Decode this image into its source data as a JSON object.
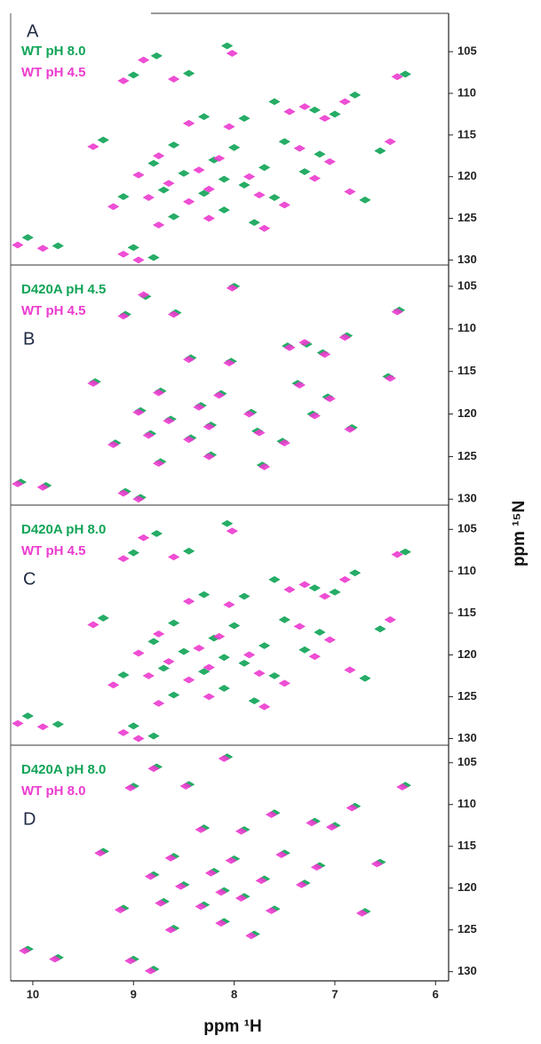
{
  "chart_data": [
    {
      "type": "scatter",
      "panel_label": "A",
      "xlim": [
        10.22,
        5.87
      ],
      "ylim": [
        100.4,
        130.6
      ],
      "yticks": [
        105,
        110,
        115,
        120,
        125,
        130
      ],
      "series": [
        {
          "name": "WT pH 8.0",
          "color": "#10a456",
          "x": [
            8.07,
            8.77,
            8.45,
            9.0,
            6.3,
            6.8,
            7.6,
            7.2,
            7.0,
            7.9,
            8.3,
            9.3,
            8.6,
            8.0,
            7.5,
            8.8,
            8.2,
            7.7,
            7.3,
            8.5,
            8.1,
            7.9,
            8.7,
            8.3,
            7.6,
            9.1,
            6.7,
            8.1,
            7.8,
            8.6,
            10.05,
            9.75,
            9.0,
            8.8,
            7.15,
            6.55
          ],
          "values": [
            104.3,
            105.5,
            107.6,
            107.8,
            107.7,
            110.2,
            111.0,
            112.0,
            112.5,
            113.0,
            112.8,
            115.6,
            116.2,
            116.5,
            115.8,
            118.4,
            118.0,
            118.9,
            119.4,
            119.6,
            120.3,
            121.0,
            121.6,
            122.0,
            122.5,
            122.4,
            122.8,
            124.0,
            125.5,
            124.8,
            127.3,
            128.3,
            128.5,
            129.7,
            117.3,
            116.9
          ]
        },
        {
          "name": "WT pH 4.5",
          "color": "#ec3ccf",
          "x": [
            8.02,
            8.9,
            8.6,
            9.1,
            6.38,
            6.9,
            7.45,
            7.1,
            7.3,
            8.05,
            8.45,
            9.4,
            8.75,
            8.15,
            7.35,
            8.95,
            8.35,
            7.85,
            7.2,
            8.65,
            8.25,
            7.75,
            8.85,
            8.45,
            7.5,
            9.2,
            6.85,
            8.25,
            7.7,
            8.75,
            10.15,
            9.9,
            9.1,
            8.95,
            7.05,
            6.45
          ],
          "values": [
            105.2,
            106.0,
            108.3,
            108.5,
            108.0,
            111.0,
            112.2,
            113.0,
            111.6,
            114.0,
            113.6,
            116.4,
            117.5,
            117.8,
            116.6,
            119.8,
            119.2,
            120.0,
            120.2,
            120.8,
            121.5,
            122.2,
            122.5,
            123.0,
            123.4,
            123.6,
            121.8,
            125.0,
            126.2,
            125.8,
            128.2,
            128.6,
            129.3,
            130.0,
            118.2,
            115.8
          ]
        }
      ]
    },
    {
      "type": "scatter",
      "panel_label": "B",
      "xlim": [
        10.22,
        5.87
      ],
      "ylim": [
        102.5,
        130.7
      ],
      "yticks": [
        105,
        110,
        115,
        120,
        125,
        130
      ],
      "series": [
        {
          "name": "D420A pH 4.5",
          "color": "#10a456",
          "x": [
            8.0,
            8.88,
            8.58,
            9.08,
            6.36,
            6.88,
            7.47,
            7.12,
            7.28,
            8.03,
            8.43,
            9.38,
            8.73,
            8.13,
            7.37,
            8.93,
            8.33,
            7.83,
            7.22,
            8.63,
            8.23,
            7.77,
            8.83,
            8.43,
            7.52,
            9.18,
            6.83,
            8.23,
            7.72,
            8.73,
            10.12,
            9.87,
            9.08,
            8.93,
            7.07,
            6.47
          ],
          "values": [
            105.0,
            106.2,
            108.1,
            108.3,
            107.8,
            110.8,
            112.0,
            112.8,
            111.8,
            113.8,
            113.4,
            116.2,
            117.3,
            117.6,
            116.4,
            119.6,
            119.0,
            119.8,
            120.0,
            120.6,
            121.3,
            122.0,
            122.3,
            122.8,
            123.2,
            123.4,
            121.6,
            124.8,
            126.0,
            125.6,
            128.0,
            128.4,
            129.1,
            129.8,
            118.0,
            115.6
          ]
        },
        {
          "name": "WT pH 4.5",
          "color": "#ec3ccf",
          "x": [
            8.02,
            8.9,
            8.6,
            9.1,
            6.38,
            6.9,
            7.45,
            7.1,
            7.3,
            8.05,
            8.45,
            9.4,
            8.75,
            8.15,
            7.35,
            8.95,
            8.35,
            7.85,
            7.2,
            8.65,
            8.25,
            7.75,
            8.85,
            8.45,
            7.5,
            9.2,
            6.85,
            8.25,
            7.7,
            8.75,
            10.15,
            9.9,
            9.1,
            8.95,
            7.05,
            6.45
          ],
          "values": [
            105.2,
            106.0,
            108.3,
            108.5,
            108.0,
            111.0,
            112.2,
            113.0,
            111.6,
            114.0,
            113.6,
            116.4,
            117.5,
            117.8,
            116.6,
            119.8,
            119.2,
            120.0,
            120.2,
            120.8,
            121.5,
            122.2,
            122.5,
            123.0,
            123.4,
            123.6,
            121.8,
            125.0,
            126.2,
            125.8,
            128.2,
            128.6,
            129.3,
            130.0,
            118.2,
            115.8
          ]
        }
      ]
    },
    {
      "type": "scatter",
      "panel_label": "C",
      "xlim": [
        10.22,
        5.87
      ],
      "ylim": [
        102.1,
        130.8
      ],
      "yticks": [
        105,
        110,
        115,
        120,
        125,
        130
      ],
      "ylabel": "ppm ¹⁵N",
      "series": [
        {
          "name": "D420A pH 8.0",
          "color": "#10a456",
          "x": [
            8.07,
            8.77,
            8.45,
            9.0,
            6.3,
            6.8,
            7.6,
            7.2,
            7.0,
            7.9,
            8.3,
            9.3,
            8.6,
            8.0,
            7.5,
            8.8,
            8.2,
            7.7,
            7.3,
            8.5,
            8.1,
            7.9,
            8.7,
            8.3,
            7.6,
            9.1,
            6.7,
            8.1,
            7.8,
            8.6,
            10.05,
            9.75,
            9.0,
            8.8,
            7.15,
            6.55
          ],
          "values": [
            104.3,
            105.5,
            107.6,
            107.8,
            107.7,
            110.2,
            111.0,
            112.0,
            112.5,
            113.0,
            112.8,
            115.6,
            116.2,
            116.5,
            115.8,
            118.4,
            118.0,
            118.9,
            119.4,
            119.6,
            120.3,
            121.0,
            121.6,
            122.0,
            122.5,
            122.4,
            122.8,
            124.0,
            125.5,
            124.8,
            127.3,
            128.3,
            128.5,
            129.7,
            117.3,
            116.9
          ]
        },
        {
          "name": "WT pH 4.5",
          "color": "#ec3ccf",
          "x": [
            8.02,
            8.9,
            8.6,
            9.1,
            6.38,
            6.9,
            7.45,
            7.1,
            7.3,
            8.05,
            8.45,
            9.4,
            8.75,
            8.15,
            7.35,
            8.95,
            8.35,
            7.85,
            7.2,
            8.65,
            8.25,
            7.75,
            8.85,
            8.45,
            7.5,
            9.2,
            6.85,
            8.25,
            7.7,
            8.75,
            10.15,
            9.9,
            9.1,
            8.95,
            7.05,
            6.45
          ],
          "values": [
            105.2,
            106.0,
            108.3,
            108.5,
            108.0,
            111.0,
            112.2,
            113.0,
            111.6,
            114.0,
            113.6,
            116.4,
            117.5,
            117.8,
            116.6,
            119.8,
            119.2,
            120.0,
            120.2,
            120.8,
            121.5,
            122.2,
            122.5,
            123.0,
            123.4,
            123.6,
            121.8,
            125.0,
            126.2,
            125.8,
            128.2,
            128.6,
            129.3,
            130.0,
            118.2,
            115.8
          ]
        }
      ]
    },
    {
      "type": "scatter",
      "panel_label": "D",
      "xlim": [
        10.22,
        5.87
      ],
      "ylim": [
        102.9,
        131.1
      ],
      "yticks": [
        105,
        110,
        115,
        120,
        125,
        130
      ],
      "xticks": [
        10,
        9,
        8,
        7,
        6
      ],
      "xlabel": "ppm ¹H",
      "series": [
        {
          "name": "D420A pH 8.0",
          "color": "#10a456",
          "x": [
            8.07,
            8.77,
            8.45,
            9.0,
            6.3,
            6.8,
            7.6,
            7.2,
            7.0,
            7.9,
            8.3,
            9.3,
            8.6,
            8.0,
            7.5,
            8.8,
            8.2,
            7.7,
            7.3,
            8.5,
            8.1,
            7.9,
            8.7,
            8.3,
            7.6,
            9.1,
            6.7,
            8.1,
            7.8,
            8.6,
            10.05,
            9.75,
            9.0,
            8.8,
            7.15,
            6.55
          ],
          "values": [
            104.3,
            105.5,
            107.6,
            107.8,
            107.7,
            110.2,
            111.0,
            112.0,
            112.5,
            113.0,
            112.8,
            115.6,
            116.2,
            116.5,
            115.8,
            118.4,
            118.0,
            118.9,
            119.4,
            119.6,
            120.3,
            121.0,
            121.6,
            122.0,
            122.5,
            122.4,
            122.8,
            124.0,
            125.5,
            124.8,
            127.3,
            128.3,
            128.5,
            129.7,
            117.3,
            116.9
          ]
        },
        {
          "name": "WT pH 8.0",
          "color": "#ec3ccf",
          "x": [
            8.1,
            8.8,
            8.48,
            9.03,
            6.33,
            6.83,
            7.63,
            7.23,
            7.03,
            7.93,
            8.33,
            9.33,
            8.63,
            8.03,
            7.53,
            8.83,
            8.23,
            7.73,
            7.33,
            8.53,
            8.13,
            7.93,
            8.73,
            8.33,
            7.63,
            9.13,
            6.73,
            8.13,
            7.83,
            8.63,
            10.08,
            9.78,
            9.03,
            8.83,
            7.18,
            6.58
          ],
          "values": [
            104.5,
            105.7,
            107.8,
            108.0,
            107.9,
            110.4,
            111.2,
            112.2,
            112.7,
            113.2,
            113.0,
            115.8,
            116.4,
            116.7,
            116.0,
            118.6,
            118.2,
            119.1,
            119.6,
            119.8,
            120.5,
            121.2,
            121.8,
            122.2,
            122.7,
            122.6,
            123.0,
            124.2,
            125.7,
            125.0,
            127.5,
            128.5,
            128.7,
            129.9,
            117.5,
            117.1
          ]
        }
      ]
    }
  ]
}
